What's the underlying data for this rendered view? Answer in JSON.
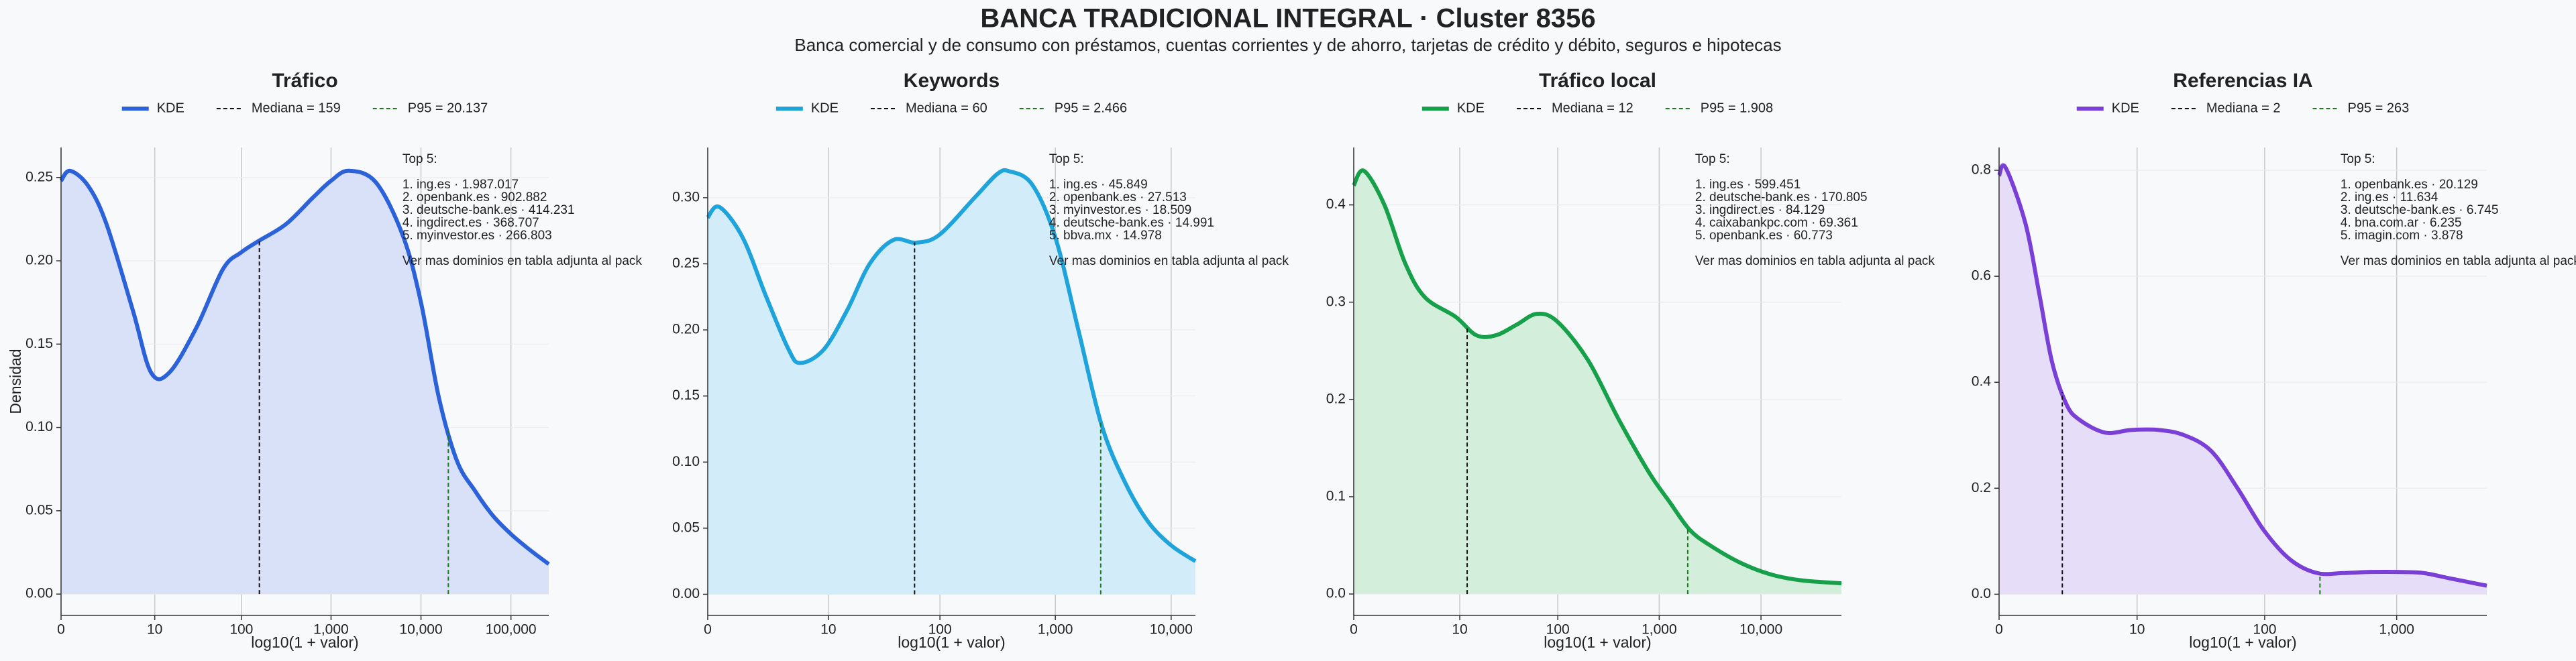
{
  "title": "BANCA TRADICIONAL INTEGRAL · Cluster 8356",
  "subtitle": "Banca comercial y de consumo con préstamos, cuentas corrientes y de ahorro, tarjetas de crédito y débito, seguros e hipotecas",
  "chart_data": [
    {
      "type": "kde",
      "title": "Tráfico",
      "x_label": "log10(1 + valor)",
      "y_label": "Densidad",
      "xscale": "log1p",
      "grid": true,
      "xlim": [
        0,
        263000
      ],
      "ylim": [
        -0.0128,
        0.268
      ],
      "xticks": [
        0,
        10,
        100,
        {
          "value": 1000,
          "label": "1,000"
        },
        {
          "value": 10000,
          "label": "10,000"
        },
        {
          "value": 100000,
          "label": "100,000"
        }
      ],
      "yticks": [
        {
          "value": 0,
          "label": "0.00"
        },
        0.05,
        {
          "value": 0.1,
          "label": "0.10"
        },
        0.15,
        {
          "value": 0.2,
          "label": "0.20"
        },
        0.25
      ],
      "series": [
        {
          "name": "KDE",
          "color": "#2b62d9",
          "fill": "#d8e1f8",
          "x": [
            0,
            0.26,
            1,
            2.2,
            5.3,
            9,
            15,
            31,
            62,
            99,
            157,
            315,
            630,
            1000,
            1580,
            3160,
            6300,
            10000,
            15800,
            25100,
            39800,
            63100,
            100000,
            158000,
            263000
          ],
          "values": [
            0.248,
            0.254,
            0.245,
            0.222,
            0.17,
            0.133,
            0.133,
            0.16,
            0.195,
            0.205,
            0.212,
            0.222,
            0.238,
            0.248,
            0.254,
            0.247,
            0.215,
            0.175,
            0.118,
            0.08,
            0.062,
            0.047,
            0.036,
            0.027,
            0.018
          ]
        }
      ],
      "median": {
        "value": 159,
        "label": "Mediana = 159",
        "color": "#111111"
      },
      "p95": {
        "value": 20137,
        "label": "P95 = 20.137",
        "color": "#1f7a1f"
      },
      "top5_title": "Top 5:",
      "top5": [
        "1. ing.es · 1.987.017",
        "2. openbank.es · 902.882",
        "3. deutsche-bank.es · 414.231",
        "4. ingdirect.es · 368.707",
        "5. myinvestor.es · 266.803"
      ],
      "note": "Ver mas dominios en tabla adjunta al pack"
    },
    {
      "type": "kde",
      "title": "Keywords",
      "x_label": "log10(1 + valor)",
      "xscale": "log1p",
      "grid": true,
      "xlim": [
        0,
        16200
      ],
      "ylim": [
        -0.016,
        0.338
      ],
      "xticks": [
        0,
        10,
        100,
        {
          "value": 1000,
          "label": "1,000"
        },
        {
          "value": 10000,
          "label": "10,000"
        }
      ],
      "yticks": [
        {
          "value": 0,
          "label": "0.00"
        },
        0.05,
        {
          "value": 0.1,
          "label": "0.10"
        },
        0.15,
        {
          "value": 0.2,
          "label": "0.20"
        },
        0.25,
        {
          "value": 0.3,
          "label": "0.30"
        }
      ],
      "series": [
        {
          "name": "KDE",
          "color": "#1ea3db",
          "fill": "#d2ecfa",
          "x": [
            0,
            0.26,
            1,
            2.2,
            4,
            5.3,
            9,
            15,
            24,
            39,
            62,
            99,
            200,
            315,
            400,
            630,
            1000,
            1580,
            2510,
            3980,
            6310,
            10000,
            16200
          ],
          "values": [
            0.285,
            0.293,
            0.27,
            0.225,
            0.185,
            0.175,
            0.185,
            0.215,
            0.25,
            0.268,
            0.266,
            0.272,
            0.3,
            0.318,
            0.32,
            0.31,
            0.27,
            0.2,
            0.128,
            0.085,
            0.055,
            0.037,
            0.025
          ]
        }
      ],
      "median": {
        "value": 60,
        "label": "Mediana = 60",
        "color": "#111111"
      },
      "p95": {
        "value": 2466,
        "label": "P95 = 2.466",
        "color": "#1f7a1f"
      },
      "top5_title": "Top 5:",
      "top5": [
        "1. ing.es · 45.849",
        "2. openbank.es · 27.513",
        "3. myinvestor.es · 18.509",
        "4. deutsche-bank.es · 14.991",
        "5. bbva.mx · 14.978"
      ],
      "note": "Ver mas dominios en tabla adjunta al pack"
    },
    {
      "type": "kde",
      "title": "Tráfico local",
      "x_label": "log10(1 + valor)",
      "xscale": "log1p",
      "grid": true,
      "xlim": [
        0,
        61700
      ],
      "ylim": [
        -0.022,
        0.459
      ],
      "xticks": [
        0,
        10,
        100,
        {
          "value": 1000,
          "label": "1,000"
        },
        {
          "value": 10000,
          "label": "10,000"
        }
      ],
      "yticks": [
        {
          "value": 0,
          "label": "0.0"
        },
        0.1,
        0.2,
        0.3,
        0.4
      ],
      "series": [
        {
          "name": "KDE",
          "color": "#16a049",
          "fill": "#d4eedc",
          "x": [
            0,
            0.26,
            1,
            2.2,
            4,
            9,
            15,
            24,
            39,
            62,
            99,
            200,
            397,
            793,
            1258,
            1994,
            3161,
            6309,
            12588,
            25118,
            61700
          ],
          "values": [
            0.42,
            0.435,
            0.4,
            0.34,
            0.305,
            0.285,
            0.266,
            0.266,
            0.277,
            0.288,
            0.28,
            0.24,
            0.18,
            0.125,
            0.095,
            0.066,
            0.05,
            0.032,
            0.02,
            0.014,
            0.011
          ]
        }
      ],
      "median": {
        "value": 12,
        "label": "Mediana = 12",
        "color": "#111111"
      },
      "p95": {
        "value": 1908,
        "label": "P95 = 1.908",
        "color": "#1f7a1f"
      },
      "top5_title": "Top 5:",
      "top5": [
        "1. ing.es · 599.451",
        "2. deutsche-bank.es · 170.805",
        "3. ingdirect.es · 84.129",
        "4. caixabankpc.com · 69.361",
        "5. openbank.es · 60.773"
      ],
      "note": "Ver mas dominios en tabla adjunta al pack"
    },
    {
      "type": "kde",
      "title": "Referencias IA",
      "x_label": "log10(1 + valor)",
      "xscale": "log1p",
      "grid": true,
      "xlim": [
        0,
        4790
      ],
      "ylim": [
        -0.04,
        0.843
      ],
      "xticks": [
        0,
        10,
        100,
        {
          "value": 1000,
          "label": "1,000"
        }
      ],
      "yticks": [
        {
          "value": 0,
          "label": "0.0"
        },
        0.2,
        0.4,
        0.6,
        0.8
      ],
      "series": [
        {
          "name": "KDE",
          "color": "#7a3fd6",
          "fill": "#e6ddf8",
          "x": [
            0,
            0.12,
            0.58,
            1,
            1.5,
            2.2,
            3,
            5.3,
            9,
            15,
            24,
            39,
            62,
            99,
            157,
            250,
            397,
            630,
            999,
            1584,
            2511,
            4790
          ],
          "values": [
            0.79,
            0.805,
            0.7,
            0.57,
            0.44,
            0.36,
            0.33,
            0.305,
            0.31,
            0.31,
            0.3,
            0.27,
            0.2,
            0.12,
            0.065,
            0.04,
            0.04,
            0.042,
            0.042,
            0.04,
            0.03,
            0.016
          ]
        }
      ],
      "median": {
        "value": 2,
        "label": "Mediana = 2",
        "color": "#111111"
      },
      "p95": {
        "value": 263,
        "label": "P95 = 263",
        "color": "#1f7a1f"
      },
      "top5_title": "Top 5:",
      "top5": [
        "1. openbank.es · 20.129",
        "2. ing.es · 11.634",
        "3. deutsche-bank.es · 6.745",
        "4. bna.com.ar · 6.235",
        "5. imagin.com · 3.878"
      ],
      "note": "Ver mas dominios en tabla adjunta al pack"
    }
  ]
}
